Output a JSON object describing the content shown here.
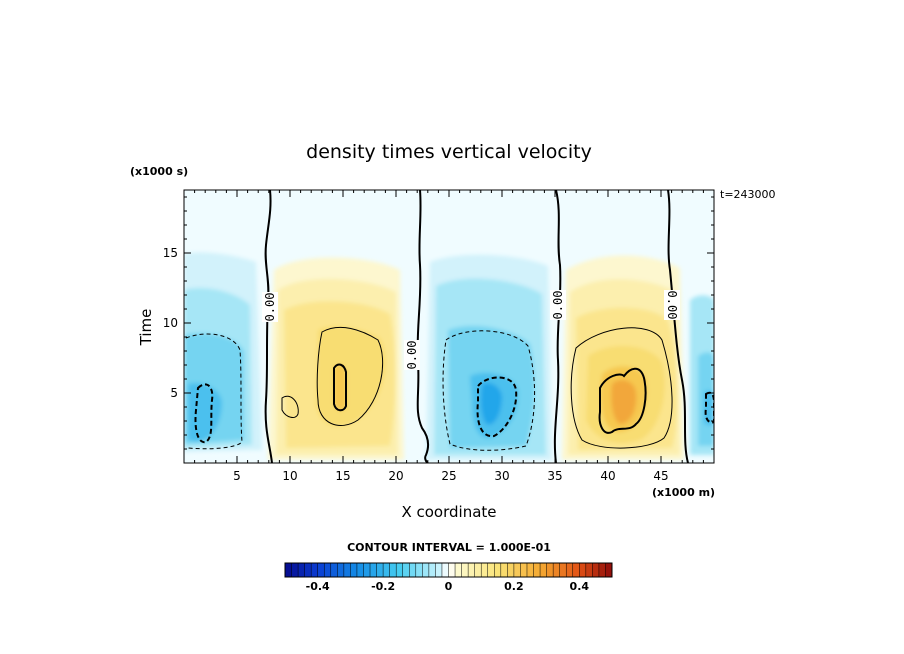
{
  "chart_data": {
    "type": "heatmap",
    "title": "density times vertical velocity",
    "xlabel": "X coordinate",
    "ylabel": "Time",
    "x_unit": "(x1000 m)",
    "y_unit": "(x1000 s)",
    "time_stamp": "t=243000",
    "xlim": [
      0,
      50
    ],
    "ylim": [
      0,
      19.5
    ],
    "x_ticks": [
      5,
      10,
      15,
      20,
      25,
      30,
      35,
      40,
      45
    ],
    "y_ticks": [
      5,
      10,
      15
    ],
    "contour_interval_text": "CONTOUR INTERVAL = 1.000E-01",
    "zero_contour_label": "0.00",
    "colorbar": {
      "min": -0.5,
      "max": 0.5,
      "tick_values": [
        -0.4,
        -0.2,
        0,
        0.2,
        0.4
      ],
      "tick_labels": [
        "-0.4",
        "-0.2",
        "0",
        "0.2",
        "0.4"
      ]
    },
    "features": [
      {
        "x": 2.2,
        "y": 5.0,
        "value": -0.3
      },
      {
        "x": 15.0,
        "y": 6.0,
        "value": 0.22
      },
      {
        "x": 28.5,
        "y": 4.0,
        "value": -0.27
      },
      {
        "x": 41.0,
        "y": 5.0,
        "value": 0.28
      },
      {
        "x": 49.5,
        "y": 4.0,
        "value": -0.25
      }
    ]
  }
}
